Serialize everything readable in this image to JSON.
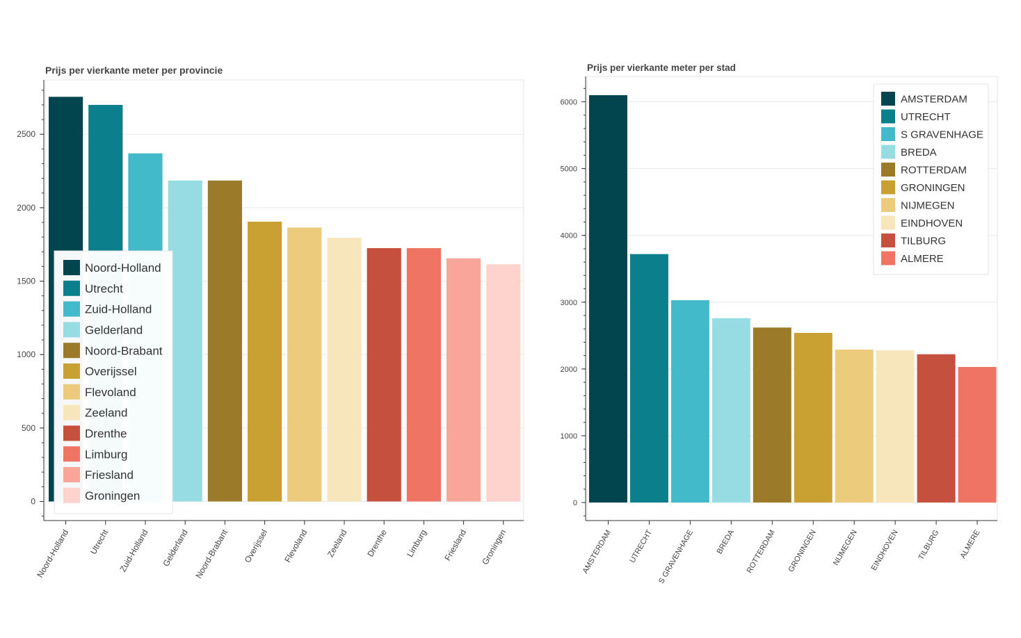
{
  "chart_data": [
    {
      "type": "bar",
      "title": "Prijs per vierkante meter per provincie",
      "xlabel": "",
      "ylabel": "",
      "ylim": [
        -130,
        2870
      ],
      "yticks": [
        0,
        500,
        1000,
        1500,
        2000,
        2500
      ],
      "categories": [
        "Noord-Holland",
        "Utrecht",
        "Zuid-Holland",
        "Gelderland",
        "Noord-Brabant",
        "Overijssel",
        "Flevoland",
        "Zeeland",
        "Drenthe",
        "Limburg",
        "Friesland",
        "Groningen"
      ],
      "values": [
        2755,
        2700,
        2370,
        2185,
        2185,
        1905,
        1865,
        1795,
        1725,
        1725,
        1655,
        1615
      ],
      "colors": [
        "#03454f",
        "#0b7f8c",
        "#43bac9",
        "#97dce2",
        "#9b7a2a",
        "#c9a133",
        "#eccb7c",
        "#f7e6bb",
        "#c4503d",
        "#ef7463",
        "#f9a59a",
        "#fed2cd"
      ],
      "legend": [
        "Noord-Holland",
        "Utrecht",
        "Zuid-Holland",
        "Gelderland",
        "Noord-Brabant",
        "Overijssel",
        "Flevoland",
        "Zeeland",
        "Drenthe",
        "Limburg",
        "Friesland",
        "Groningen"
      ],
      "legend_location": "bottom-left"
    },
    {
      "type": "bar",
      "title": "Prijs per vierkante meter per stad",
      "xlabel": "",
      "ylabel": "",
      "ylim": [
        -270,
        6380
      ],
      "yticks": [
        0,
        1000,
        2000,
        3000,
        4000,
        5000,
        6000
      ],
      "categories": [
        "AMSTERDAM",
        "UTRECHT",
        "S GRAVENHAGE",
        "BREDA",
        "ROTTERDAM",
        "GRONINGEN",
        "NIJMEGEN",
        "EINDHOVEN",
        "TILBURG",
        "ALMERE"
      ],
      "values": [
        6100,
        3720,
        3030,
        2760,
        2620,
        2540,
        2290,
        2280,
        2220,
        2030
      ],
      "colors": [
        "#03454f",
        "#0b7f8c",
        "#43bac9",
        "#97dce2",
        "#9b7a2a",
        "#c9a133",
        "#eccb7c",
        "#f7e6bb",
        "#c4503d",
        "#ef7463"
      ],
      "legend": [
        "AMSTERDAM",
        "UTRECHT",
        "S GRAVENHAGE",
        "BREDA",
        "ROTTERDAM",
        "GRONINGEN",
        "NIJMEGEN",
        "EINDHOVEN",
        "TILBURG",
        "ALMERE"
      ],
      "legend_location": "top-right"
    }
  ]
}
